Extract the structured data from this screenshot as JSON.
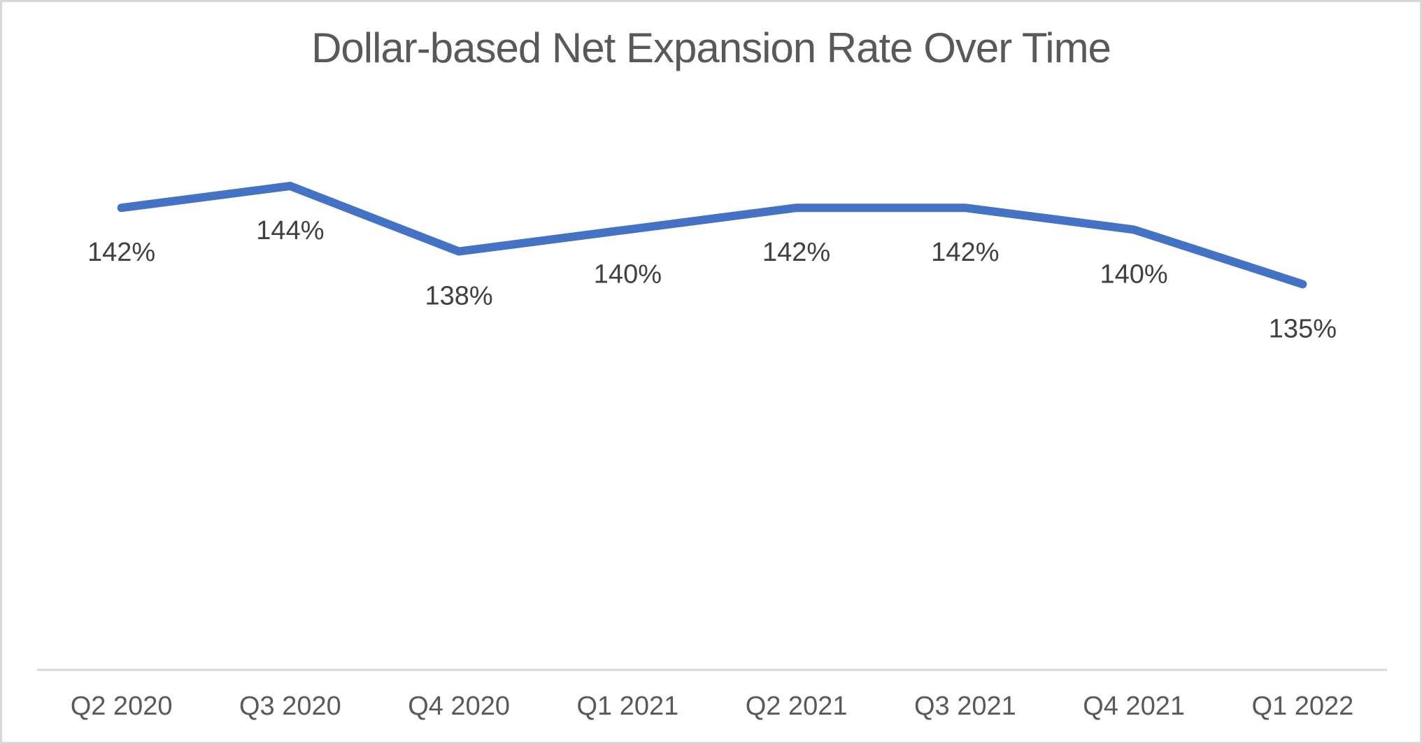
{
  "chart_data": {
    "type": "line",
    "title": "Dollar-based Net Expansion Rate Over Time",
    "categories": [
      "Q2 2020",
      "Q3 2020",
      "Q4 2020",
      "Q1 2021",
      "Q2 2021",
      "Q3 2021",
      "Q4 2021",
      "Q1 2022"
    ],
    "values": [
      142,
      144,
      138,
      140,
      142,
      142,
      140,
      135
    ],
    "data_labels": [
      "142%",
      "144%",
      "138%",
      "140%",
      "142%",
      "142%",
      "140%",
      "135%"
    ],
    "unit": "%",
    "xlabel": "",
    "ylabel": "",
    "legend": "none",
    "grid": false,
    "markers": false,
    "data_label_position": "below",
    "colors": {
      "line": "#4472C4",
      "title": "#595959",
      "data_label": "#404040",
      "axis_label": "#595959",
      "axis_line": "#D9D9D9",
      "border": "#D9D9D9",
      "background": "#FFFFFF"
    }
  }
}
